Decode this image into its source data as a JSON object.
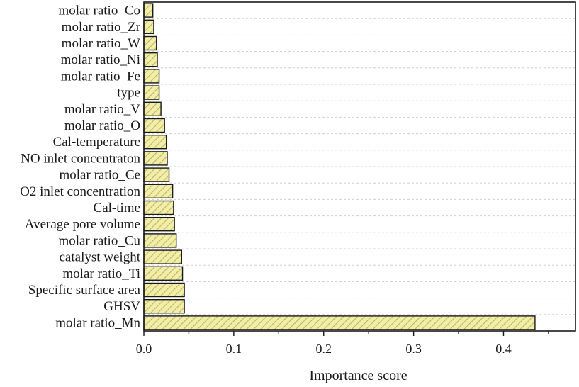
{
  "chart_data": {
    "type": "bar",
    "orientation": "horizontal",
    "categories": [
      "molar ratio_Co",
      "molar ratio_Zr",
      "molar ratio_W",
      "molar ratio_Ni",
      "molar ratio_Fe",
      "type",
      "molar ratio_V",
      "molar ratio_O",
      "Cal-temperature",
      "NO inlet concentraton",
      "molar ratio_Ce",
      "O2 inlet concentration",
      "Cal-time",
      "Average pore volume",
      "molar ratio_Cu",
      "catalyst weight",
      "molar ratio_Ti",
      "Specific surface area",
      "GHSV",
      "molar ratio_Mn"
    ],
    "values": [
      0.01,
      0.011,
      0.014,
      0.015,
      0.017,
      0.017,
      0.019,
      0.023,
      0.025,
      0.026,
      0.028,
      0.032,
      0.033,
      0.034,
      0.036,
      0.042,
      0.043,
      0.045,
      0.045,
      0.435
    ],
    "xlabel": "Importance score",
    "xlim": [
      0.0,
      0.48
    ],
    "xticks": [
      0.0,
      0.1,
      0.2,
      0.3,
      0.4
    ],
    "xtick_labels": [
      "0.0",
      "0.1",
      "0.2",
      "0.3",
      "0.4"
    ],
    "grid": true,
    "colors": {
      "bar_fill": "#f2eda9",
      "bar_hatch": "#b8b85e",
      "axis": "#1a1a1a",
      "grid": "#d0d0d0"
    }
  }
}
